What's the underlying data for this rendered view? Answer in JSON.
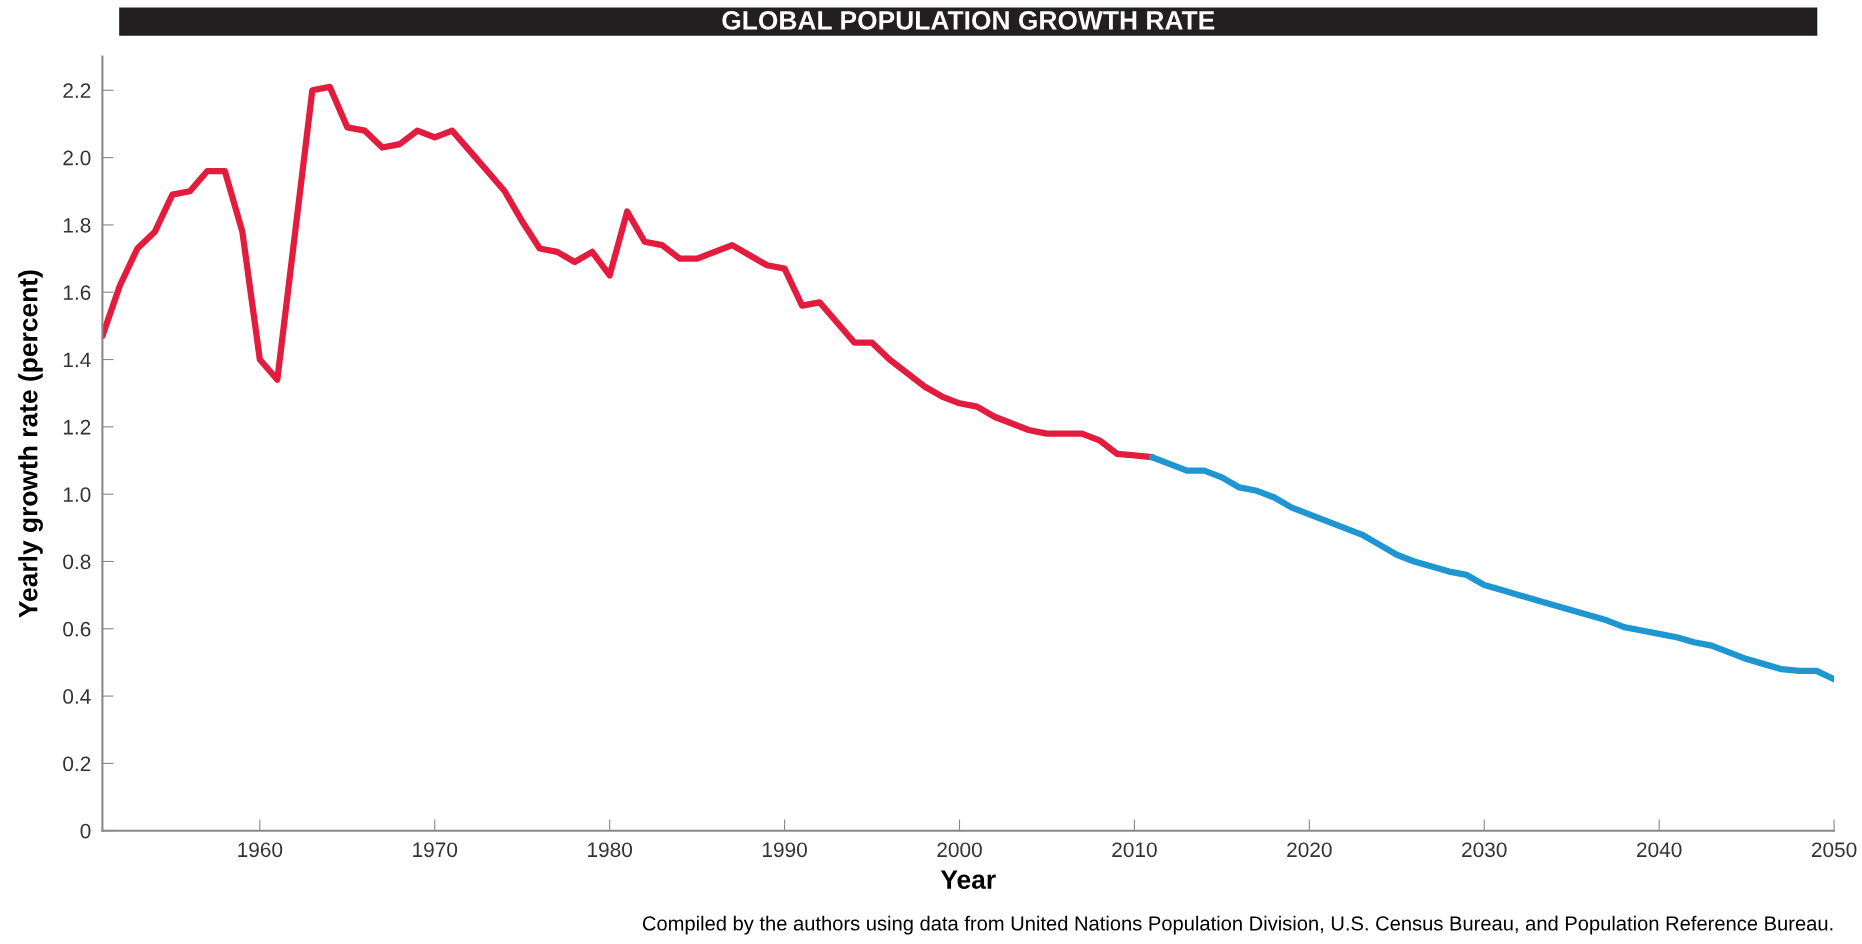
{
  "chart_data": {
    "type": "line",
    "title": "GLOBAL POPULATION GROWTH RATE",
    "xlabel": "Year",
    "ylabel": "Yearly growth rate (percent)",
    "annotations": [
      "Compiled by the authors using data from United Nations Population Division, U.S. Census Bureau, and Population Reference Bureau."
    ],
    "series": [
      {
        "color": "#e31c3d",
        "x": [
          1951,
          1952,
          1953,
          1954,
          1955,
          1956,
          1957,
          1958,
          1959,
          1960,
          1961,
          1963,
          1964,
          1965,
          1966,
          1967,
          1968,
          1969,
          1970,
          1971,
          1972,
          1973,
          1974,
          1975,
          1976,
          1977,
          1978,
          1979,
          1980,
          1981,
          1982,
          1983,
          1984,
          1985,
          1986,
          1987,
          1988,
          1989,
          1990,
          1991,
          1992,
          1993,
          1994,
          1995,
          1996,
          1997,
          1998,
          1999,
          2000,
          2001,
          2002,
          2003,
          2004,
          2005,
          2006,
          2007,
          2008,
          2009,
          2010,
          2011
        ],
        "values": [
          1.47,
          1.62,
          1.73,
          1.78,
          1.89,
          1.9,
          1.96,
          1.96,
          1.78,
          1.4,
          1.34,
          2.2,
          2.21,
          2.09,
          2.08,
          2.03,
          2.04,
          2.08,
          2.06,
          2.08,
          2.02,
          1.96,
          1.9,
          1.81,
          1.73,
          1.72,
          1.69,
          1.72,
          1.65,
          1.84,
          1.75,
          1.74,
          1.7,
          1.7,
          1.72,
          1.74,
          1.71,
          1.68,
          1.67,
          1.56,
          1.57,
          1.51,
          1.45,
          1.45,
          1.4,
          1.36,
          1.32,
          1.29,
          1.27,
          1.26,
          1.23,
          1.21,
          1.19,
          1.18,
          1.18,
          1.18,
          1.16,
          1.12,
          1.115,
          1.11
        ]
      },
      {
        "color": "#1e96d2",
        "x": [
          2011,
          2012,
          2013,
          2014,
          2015,
          2016,
          2017,
          2018,
          2019,
          2020,
          2021,
          2022,
          2023,
          2024,
          2025,
          2026,
          2027,
          2028,
          2029,
          2030,
          2031,
          2032,
          2033,
          2034,
          2035,
          2036,
          2037,
          2038,
          2039,
          2040,
          2041,
          2042,
          2043,
          2044,
          2045,
          2046,
          2047,
          2048,
          2049,
          2050
        ],
        "values": [
          1.11,
          1.09,
          1.07,
          1.07,
          1.05,
          1.02,
          1.01,
          0.99,
          0.96,
          0.94,
          0.92,
          0.9,
          0.88,
          0.85,
          0.82,
          0.8,
          0.785,
          0.77,
          0.76,
          0.73,
          0.715,
          0.7,
          0.685,
          0.67,
          0.655,
          0.64,
          0.625,
          0.605,
          0.595,
          0.585,
          0.575,
          0.56,
          0.55,
          0.53,
          0.51,
          0.495,
          0.48,
          0.475,
          0.475,
          0.45
        ]
      }
    ],
    "xlim": [
      1951,
      2050
    ],
    "xticks": [
      1960,
      1970,
      1980,
      1990,
      2000,
      2010,
      2020,
      2030,
      2040,
      2050
    ],
    "ylim": [
      0,
      2.3
    ],
    "yticks": [
      0,
      0.2,
      0.4,
      0.6,
      0.8,
      {
        "value": 1,
        "label": "1.0"
      },
      1.2,
      1.4,
      1.6,
      1.8,
      {
        "value": 2,
        "label": "2.0"
      },
      2.2
    ],
    "grid": false,
    "legend": false,
    "marker": "none",
    "line_style": "solid"
  }
}
